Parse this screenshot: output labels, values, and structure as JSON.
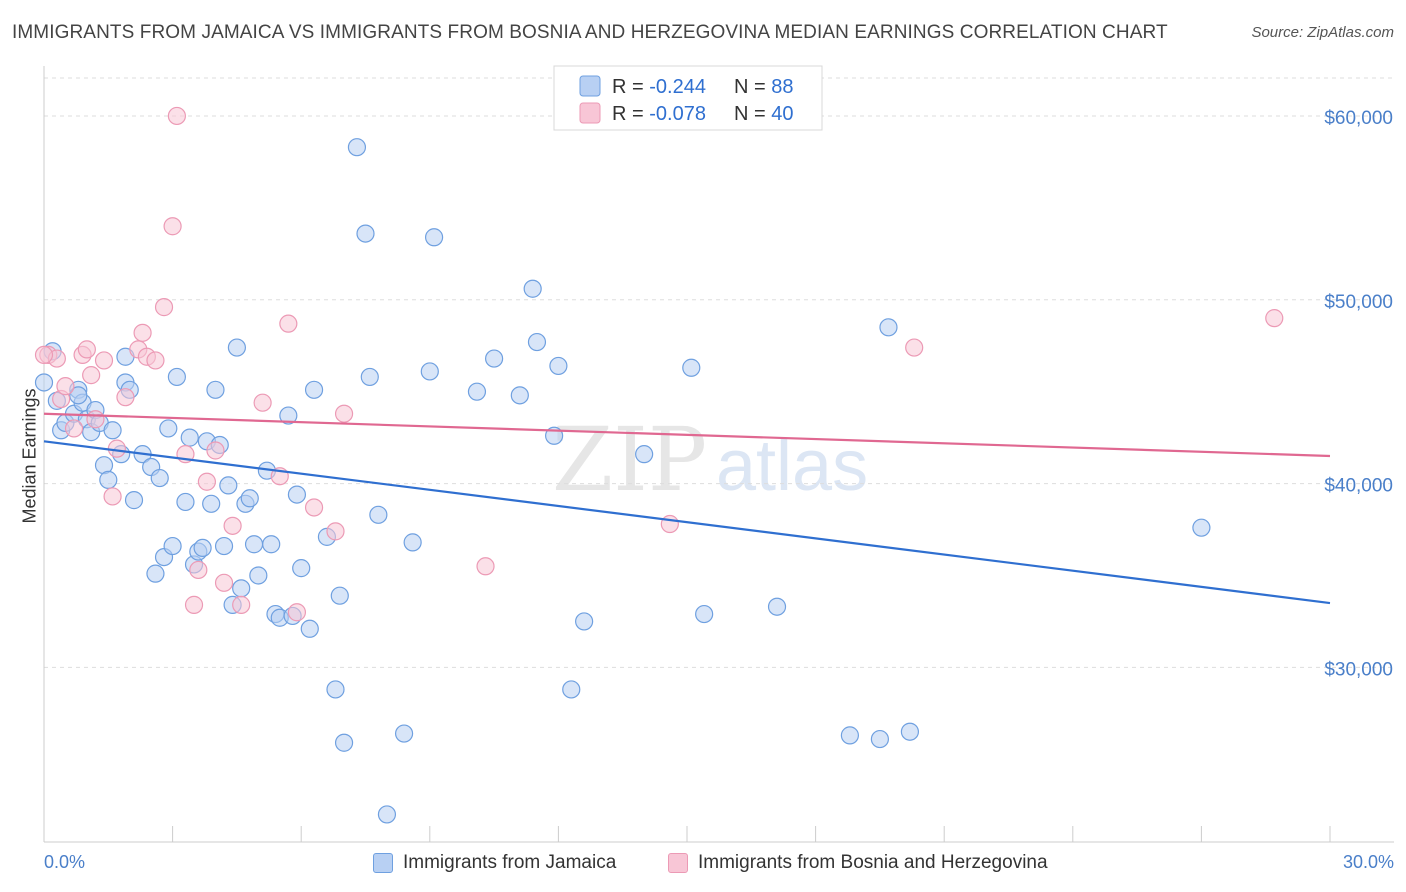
{
  "title": "IMMIGRANTS FROM JAMAICA VS IMMIGRANTS FROM BOSNIA AND HERZEGOVINA MEDIAN EARNINGS CORRELATION CHART",
  "source": "Source: ZipAtlas.com",
  "watermark": {
    "zip": "ZIP",
    "atlas": "atlas"
  },
  "chart_data": {
    "type": "scatter",
    "ylabel": "Median Earnings",
    "xlabel": "",
    "xlim": [
      0,
      30
    ],
    "ylim": [
      20500,
      62500
    ],
    "x_tick_labels": [
      "0.0%",
      "30.0%"
    ],
    "y_ticks": [
      30000,
      40000,
      50000,
      60000
    ],
    "y_tick_labels": [
      "$30,000",
      "$40,000",
      "$50,000",
      "$60,000"
    ],
    "grid": "horizontal dashed",
    "legend_top": [
      {
        "r_label": "R = ",
        "r_value": "-0.244",
        "n_label": "N = ",
        "n_value": "88"
      },
      {
        "r_label": "R = ",
        "r_value": "-0.078",
        "n_label": "N = ",
        "n_value": "40"
      }
    ],
    "series": [
      {
        "name": "Immigrants from Jamaica",
        "color": "#6fa0e0",
        "fill": "#b8d0f3",
        "line_color": "#2f6fd0",
        "trend": {
          "x": [
            0,
            30
          ],
          "y": [
            42300,
            33500
          ]
        },
        "points": [
          [
            0.0,
            45500
          ],
          [
            0.2,
            47200
          ],
          [
            0.3,
            44500
          ],
          [
            0.4,
            42900
          ],
          [
            0.5,
            43300
          ],
          [
            0.7,
            43800
          ],
          [
            0.8,
            45100
          ],
          [
            0.9,
            44400
          ],
          [
            1.0,
            43500
          ],
          [
            1.1,
            42800
          ],
          [
            1.2,
            44000
          ],
          [
            1.3,
            43300
          ],
          [
            1.4,
            41000
          ],
          [
            1.5,
            40200
          ],
          [
            1.6,
            42900
          ],
          [
            1.8,
            41600
          ],
          [
            1.9,
            45500
          ],
          [
            2.0,
            45100
          ],
          [
            2.1,
            39100
          ],
          [
            2.3,
            41600
          ],
          [
            2.5,
            40900
          ],
          [
            2.6,
            35100
          ],
          [
            2.7,
            40300
          ],
          [
            2.8,
            36000
          ],
          [
            2.9,
            43000
          ],
          [
            3.0,
            36600
          ],
          [
            3.1,
            45800
          ],
          [
            3.3,
            39000
          ],
          [
            3.4,
            42500
          ],
          [
            3.5,
            35600
          ],
          [
            3.6,
            36300
          ],
          [
            3.7,
            36500
          ],
          [
            3.8,
            42300
          ],
          [
            3.9,
            38900
          ],
          [
            4.0,
            45100
          ],
          [
            4.1,
            42100
          ],
          [
            4.2,
            36600
          ],
          [
            4.3,
            39900
          ],
          [
            4.4,
            33400
          ],
          [
            4.5,
            47400
          ],
          [
            4.6,
            34300
          ],
          [
            4.7,
            38900
          ],
          [
            4.8,
            39200
          ],
          [
            4.9,
            36700
          ],
          [
            5.0,
            35000
          ],
          [
            5.2,
            40700
          ],
          [
            5.3,
            36700
          ],
          [
            5.4,
            32900
          ],
          [
            5.5,
            32700
          ],
          [
            5.7,
            43700
          ],
          [
            5.8,
            32800
          ],
          [
            5.9,
            39400
          ],
          [
            6.0,
            35400
          ],
          [
            6.2,
            32100
          ],
          [
            6.3,
            45100
          ],
          [
            6.6,
            37100
          ],
          [
            6.8,
            28800
          ],
          [
            6.9,
            33900
          ],
          [
            7.0,
            25900
          ],
          [
            7.3,
            58300
          ],
          [
            7.5,
            53600
          ],
          [
            7.6,
            45800
          ],
          [
            7.8,
            38300
          ],
          [
            8.0,
            22000
          ],
          [
            8.4,
            26400
          ],
          [
            8.6,
            36800
          ],
          [
            9.0,
            46100
          ],
          [
            9.1,
            53400
          ],
          [
            10.1,
            45000
          ],
          [
            10.5,
            46800
          ],
          [
            11.1,
            44800
          ],
          [
            11.4,
            50600
          ],
          [
            11.5,
            47700
          ],
          [
            11.9,
            42600
          ],
          [
            12.0,
            46400
          ],
          [
            12.3,
            28800
          ],
          [
            12.6,
            32500
          ],
          [
            14.0,
            41600
          ],
          [
            15.1,
            46300
          ],
          [
            15.4,
            32900
          ],
          [
            17.1,
            33300
          ],
          [
            18.8,
            26300
          ],
          [
            19.5,
            26100
          ],
          [
            19.7,
            48500
          ],
          [
            20.2,
            26500
          ],
          [
            27.0,
            37600
          ],
          [
            1.9,
            46900
          ],
          [
            0.8,
            44800
          ]
        ]
      },
      {
        "name": "Immigrants from Bosnia and Herzegovina",
        "color": "#ec9ab5",
        "fill": "#f8c6d6",
        "line_color": "#e06891",
        "trend": {
          "x": [
            0,
            30
          ],
          "y": [
            43800,
            41500
          ]
        },
        "points": [
          [
            0.1,
            47000
          ],
          [
            0.3,
            46800
          ],
          [
            0.4,
            44600
          ],
          [
            0.5,
            45300
          ],
          [
            0.7,
            43000
          ],
          [
            0.9,
            47000
          ],
          [
            1.0,
            47300
          ],
          [
            1.1,
            45900
          ],
          [
            1.2,
            43500
          ],
          [
            1.4,
            46700
          ],
          [
            1.6,
            39300
          ],
          [
            1.7,
            41900
          ],
          [
            1.9,
            44700
          ],
          [
            2.2,
            47300
          ],
          [
            2.3,
            48200
          ],
          [
            2.4,
            46900
          ],
          [
            2.6,
            46700
          ],
          [
            2.8,
            49600
          ],
          [
            3.0,
            54000
          ],
          [
            3.1,
            60000
          ],
          [
            3.3,
            41600
          ],
          [
            3.5,
            33400
          ],
          [
            3.6,
            35300
          ],
          [
            3.8,
            40100
          ],
          [
            4.0,
            41800
          ],
          [
            4.2,
            34600
          ],
          [
            4.4,
            37700
          ],
          [
            4.6,
            33400
          ],
          [
            5.1,
            44400
          ],
          [
            5.5,
            40400
          ],
          [
            5.7,
            48700
          ],
          [
            5.9,
            33000
          ],
          [
            6.3,
            38700
          ],
          [
            6.8,
            37400
          ],
          [
            7.0,
            43800
          ],
          [
            10.3,
            35500
          ],
          [
            14.6,
            37800
          ],
          [
            20.3,
            47400
          ],
          [
            28.7,
            49000
          ],
          [
            0.0,
            47000
          ]
        ]
      }
    ]
  }
}
